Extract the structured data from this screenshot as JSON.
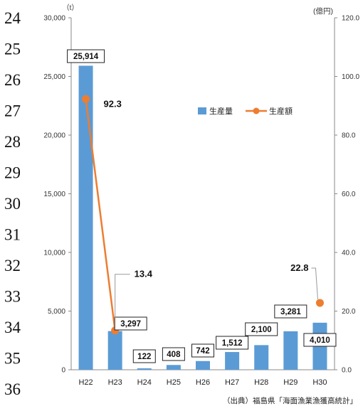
{
  "line_numbers": [
    "24",
    "25",
    "26",
    "27",
    "28",
    "29",
    "30",
    "31",
    "32",
    "33",
    "34",
    "35",
    "36"
  ],
  "source_note": "（出典）福島県「海面漁業漁獲高統計」",
  "chart_data": {
    "type": "bar",
    "categories": [
      "H22",
      "H23",
      "H24",
      "H25",
      "H26",
      "H27",
      "H28",
      "H29",
      "H30"
    ],
    "series": [
      {
        "name": "生産量",
        "type": "bar",
        "axis": "left",
        "color": "#5b9bd5",
        "values": [
          25914,
          3297,
          122,
          408,
          742,
          1512,
          2100,
          3281,
          4010
        ],
        "data_labels": [
          "25,914",
          "3,297",
          "122",
          "408",
          "742",
          "1,512",
          "2,100",
          "3,281",
          "4,010"
        ]
      },
      {
        "name": "生産額",
        "type": "line",
        "axis": "right",
        "color": "#ed7d31",
        "points": [
          {
            "category": "H22",
            "value": 92.3,
            "label": "92.3"
          },
          {
            "category": "H23",
            "value": 13.4,
            "label": "13.4"
          },
          {
            "category": "H30",
            "value": 22.8,
            "label": "22.8"
          }
        ]
      }
    ],
    "y_left": {
      "unit_label": "（t）",
      "range": [
        0,
        30000
      ],
      "tick_labels": [
        "0",
        "5,000",
        "10,000",
        "15,000",
        "20,000",
        "25,000",
        "30,000"
      ]
    },
    "y_right": {
      "unit_label": "(億円)",
      "range": [
        0,
        120
      ],
      "tick_labels": [
        "0.0",
        "20.0",
        "40.0",
        "60.0",
        "80.0",
        "100.0",
        "120.0"
      ]
    },
    "legend": {
      "position": "upper-right",
      "items": [
        "生産量",
        "生産額"
      ]
    },
    "grid": false
  }
}
